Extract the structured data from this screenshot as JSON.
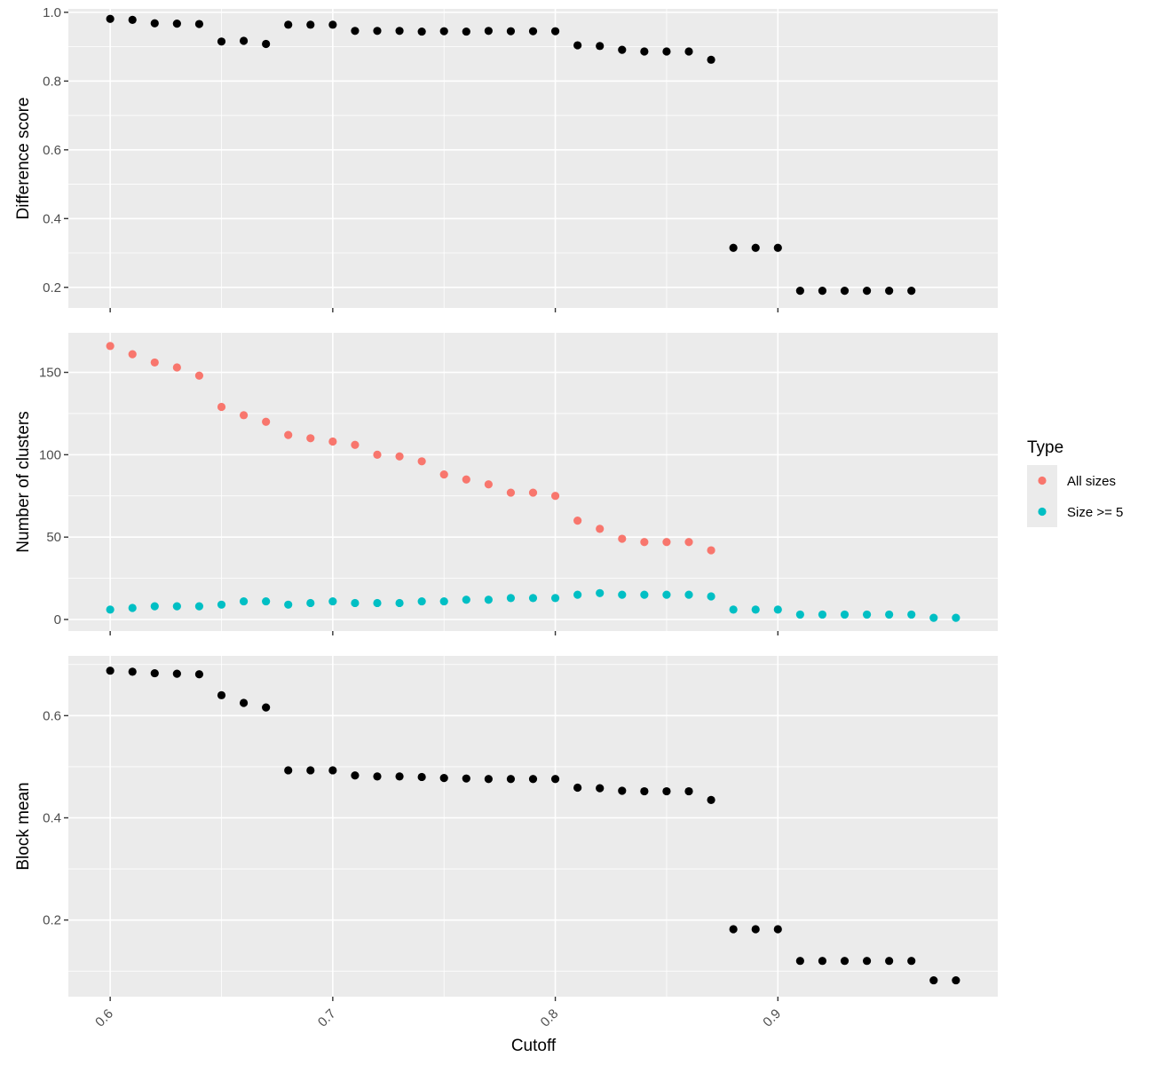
{
  "chart_data": [
    {
      "type": "scatter",
      "ylabel": "Difference score",
      "ylim": [
        0.14,
        1.01
      ],
      "yticks": [
        0.2,
        0.4,
        0.6,
        0.8,
        1.0
      ],
      "ytick_labels": [
        "0.2",
        "0.4",
        "0.6",
        "0.8",
        "1.0"
      ],
      "series": [
        {
          "color": "#000000",
          "x": [
            0.6,
            0.61,
            0.62,
            0.63,
            0.64,
            0.65,
            0.66,
            0.67,
            0.68,
            0.69,
            0.7,
            0.71,
            0.72,
            0.73,
            0.74,
            0.75,
            0.76,
            0.77,
            0.78,
            0.79,
            0.8,
            0.81,
            0.82,
            0.83,
            0.84,
            0.85,
            0.86,
            0.87,
            0.88,
            0.89,
            0.9,
            0.91,
            0.92,
            0.93,
            0.94,
            0.95,
            0.96
          ],
          "y": [
            0.981,
            0.978,
            0.968,
            0.967,
            0.966,
            0.915,
            0.917,
            0.908,
            0.964,
            0.964,
            0.964,
            0.946,
            0.946,
            0.946,
            0.944,
            0.945,
            0.944,
            0.946,
            0.945,
            0.945,
            0.945,
            0.904,
            0.902,
            0.891,
            0.886,
            0.886,
            0.886,
            0.862,
            0.315,
            0.315,
            0.315,
            0.19,
            0.19,
            0.19,
            0.19,
            0.19,
            0.19
          ]
        }
      ]
    },
    {
      "type": "scatter",
      "ylabel": "Number of clusters",
      "ylim": [
        -7,
        174
      ],
      "yticks": [
        0,
        50,
        100,
        150
      ],
      "ytick_labels": [
        "0",
        "50",
        "100",
        "150"
      ],
      "series": [
        {
          "name": "All sizes",
          "color": "#F8766D",
          "x": [
            0.6,
            0.61,
            0.62,
            0.63,
            0.64,
            0.65,
            0.66,
            0.67,
            0.68,
            0.69,
            0.7,
            0.71,
            0.72,
            0.73,
            0.74,
            0.75,
            0.76,
            0.77,
            0.78,
            0.79,
            0.8,
            0.81,
            0.82,
            0.83,
            0.84,
            0.85,
            0.86,
            0.87
          ],
          "y": [
            166,
            161,
            156,
            153,
            148,
            129,
            124,
            120,
            112,
            110,
            108,
            106,
            100,
            99,
            96,
            88,
            85,
            82,
            77,
            77,
            75,
            60,
            55,
            49,
            47,
            47,
            47,
            42
          ]
        },
        {
          "name": "Size >= 5",
          "color": "#00BFC4",
          "x": [
            0.6,
            0.61,
            0.62,
            0.63,
            0.64,
            0.65,
            0.66,
            0.67,
            0.68,
            0.69,
            0.7,
            0.71,
            0.72,
            0.73,
            0.74,
            0.75,
            0.76,
            0.77,
            0.78,
            0.79,
            0.8,
            0.81,
            0.82,
            0.83,
            0.84,
            0.85,
            0.86,
            0.87,
            0.88,
            0.89,
            0.9,
            0.91,
            0.92,
            0.93,
            0.94,
            0.95,
            0.96,
            0.97,
            0.98
          ],
          "y": [
            6,
            7,
            8,
            8,
            8,
            9,
            11,
            11,
            9,
            10,
            11,
            10,
            10,
            10,
            11,
            11,
            12,
            12,
            13,
            13,
            13,
            15,
            16,
            15,
            15,
            15,
            15,
            14,
            6,
            6,
            6,
            3,
            3,
            3,
            3,
            3,
            3,
            1,
            1
          ]
        }
      ]
    },
    {
      "type": "scatter",
      "ylabel": "Block mean",
      "ylim": [
        0.05,
        0.717
      ],
      "yticks": [
        0.2,
        0.4,
        0.6
      ],
      "ytick_labels": [
        "0.2",
        "0.4",
        "0.6"
      ],
      "series": [
        {
          "color": "#000000",
          "x": [
            0.6,
            0.61,
            0.62,
            0.63,
            0.64,
            0.65,
            0.66,
            0.67,
            0.68,
            0.69,
            0.7,
            0.71,
            0.72,
            0.73,
            0.74,
            0.75,
            0.76,
            0.77,
            0.78,
            0.79,
            0.8,
            0.81,
            0.82,
            0.83,
            0.84,
            0.85,
            0.86,
            0.87,
            0.88,
            0.89,
            0.9,
            0.91,
            0.92,
            0.93,
            0.94,
            0.95,
            0.96,
            0.97,
            0.98
          ],
          "y": [
            0.688,
            0.686,
            0.683,
            0.682,
            0.681,
            0.64,
            0.625,
            0.616,
            0.493,
            0.493,
            0.493,
            0.483,
            0.481,
            0.481,
            0.48,
            0.478,
            0.477,
            0.476,
            0.476,
            0.476,
            0.476,
            0.459,
            0.458,
            0.453,
            0.452,
            0.452,
            0.452,
            0.435,
            0.182,
            0.182,
            0.182,
            0.12,
            0.12,
            0.12,
            0.12,
            0.12,
            0.12,
            0.082,
            0.082
          ]
        }
      ]
    }
  ],
  "x_axis": {
    "label": "Cutoff",
    "xlim": [
      0.5812,
      0.9988
    ],
    "ticks": [
      0.6,
      0.7,
      0.8,
      0.9
    ],
    "tick_labels": [
      "0.6",
      "0.7",
      "0.8",
      "0.9"
    ]
  },
  "legend": {
    "title": "Type",
    "placement": "right",
    "entries": [
      {
        "label": "All sizes",
        "color": "#F8766D"
      },
      {
        "label": "Size >= 5",
        "color": "#00BFC4"
      }
    ]
  },
  "colors": {
    "panel_background": "#EBEBEB",
    "grid": "#FFFFFF",
    "tick_text": "#4D4D4D"
  },
  "grid": true
}
